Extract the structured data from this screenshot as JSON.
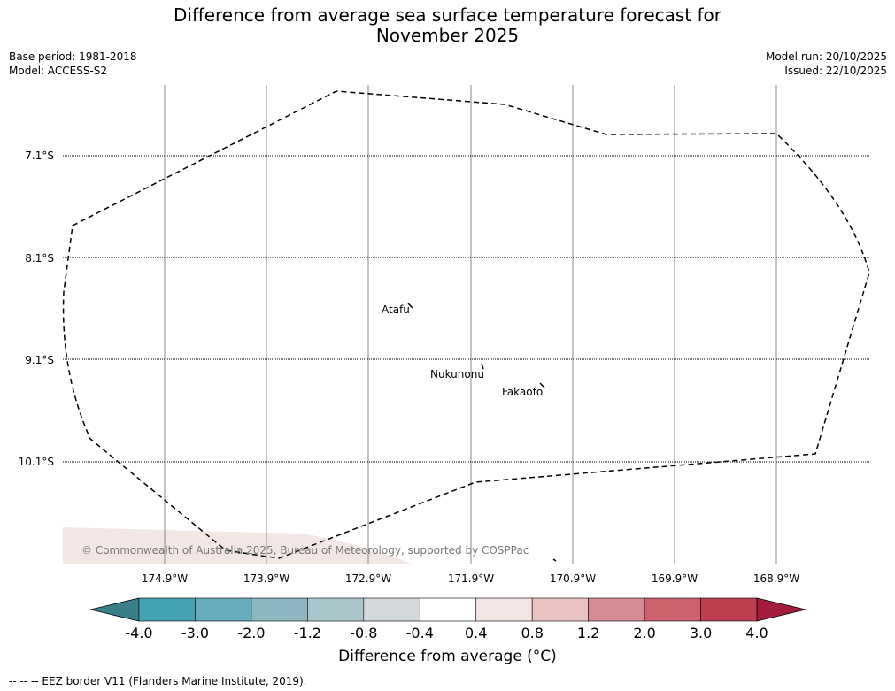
{
  "title_line1": "Difference from average sea surface temperature forecast for",
  "title_line2": "November 2025",
  "base_period": "Base period: 1981-2018",
  "model": "Model: ACCESS-S2",
  "model_run": "Model run: 20/10/2025",
  "issued": "Issued: 22/10/2025",
  "lat_labels": [
    "7.1°S",
    "8.1°S",
    "9.1°S",
    "10.1°S"
  ],
  "lon_labels": [
    "174.9°W",
    "173.9°W",
    "172.9°W",
    "171.9°W",
    "170.9°W",
    "169.9°W",
    "168.9°W"
  ],
  "places": [
    "Atafu",
    "Nukunonu",
    "Fakaofo"
  ],
  "copyright": "© Commonwealth of Australia 2025, Bureau of Meteorology, supported by COSPPac",
  "colorbar": {
    "ticks": [
      "-4.0",
      "-3.0",
      "-2.0",
      "-1.2",
      "-0.8",
      "-0.4",
      "0.4",
      "0.8",
      "1.2",
      "2.0",
      "3.0",
      "4.0"
    ],
    "colors": [
      "#3a7f88",
      "#45a2b3",
      "#68adbd",
      "#8db8c2",
      "#a9c7cb",
      "#d3d8db",
      "#ffffff",
      "#f3e5e4",
      "#e9c3c1",
      "#d68c95",
      "#cb636f",
      "#bf3f52",
      "#a31c3c"
    ],
    "title": "Difference from average (°C)"
  },
  "legend_note": "--  --  -- EEZ border V11 (Flanders Marine Institute, 2019)."
}
